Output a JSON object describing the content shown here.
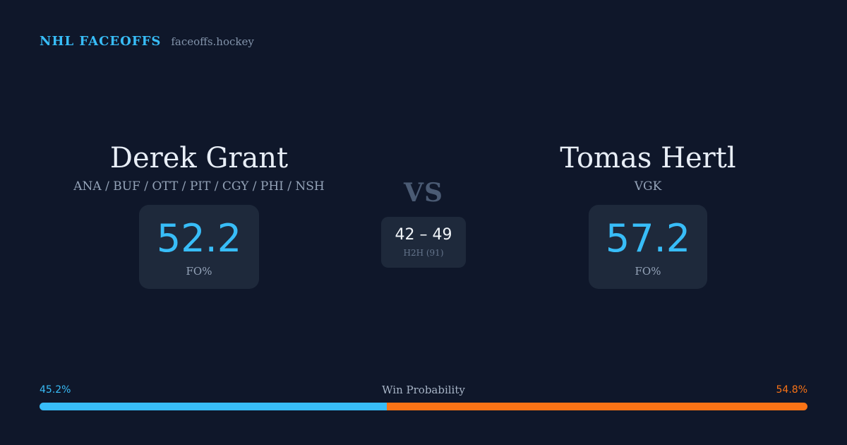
{
  "brand": {
    "name": "NHL FACEOFFS",
    "url": "faceoffs.hockey"
  },
  "players": {
    "left": {
      "name": "Derek Grant",
      "teams": "ANA / BUF / OTT / PIT / CGY / PHI / NSH",
      "fo_value": "52.2",
      "fo_label": "FO%"
    },
    "right": {
      "name": "Tomas Hertl",
      "teams": "VGK",
      "fo_value": "57.2",
      "fo_label": "FO%"
    }
  },
  "versus": {
    "label": "VS",
    "h2h_score": "42 – 49",
    "h2h_label": "H2H (91)"
  },
  "win_probability": {
    "title": "Win Probability",
    "left_label": "45.2%",
    "right_label": "54.8%",
    "left_value": 45.2,
    "right_value": 54.8
  },
  "colors": {
    "background": "#0f172a",
    "card": "#1e293b",
    "accent_blue": "#38bdf8",
    "accent_orange": "#f97316"
  }
}
